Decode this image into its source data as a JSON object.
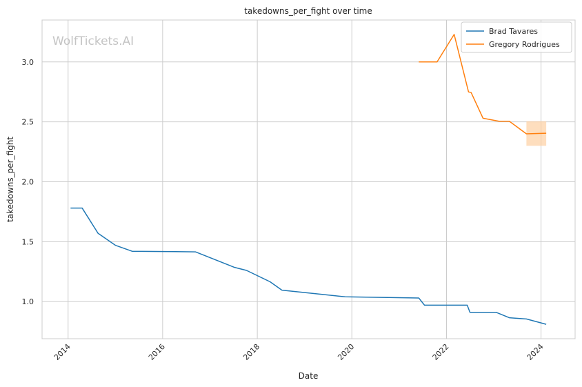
{
  "watermark": "WolfTickets.AI",
  "colors": {
    "background": "#ffffff",
    "grid": "#cccccc",
    "axes_frame": "#cccccc",
    "text": "#262626",
    "band": "#fdd0a2"
  },
  "chart_data": {
    "type": "line",
    "title": "takedowns_per_fight over time",
    "xlabel": "Date",
    "ylabel": "takedowns_per_fight",
    "x_is_date": true,
    "xlim": [
      "2013-06-14",
      "2024-09-20"
    ],
    "ylim": [
      0.69,
      3.35
    ],
    "x_ticks": [
      "2014",
      "2016",
      "2018",
      "2020",
      "2022",
      "2024"
    ],
    "y_ticks": [
      "1.0",
      "1.5",
      "2.0",
      "2.5",
      "3.0"
    ],
    "grid": true,
    "legend_position": "top-right",
    "series": [
      {
        "name": "Brad Tavares",
        "color": "#1f77b4",
        "points": [
          [
            "2014-01-20",
            1.78
          ],
          [
            "2014-04-20",
            1.78
          ],
          [
            "2014-08-20",
            1.57
          ],
          [
            "2015-01-01",
            1.47
          ],
          [
            "2015-05-10",
            1.42
          ],
          [
            "2016-09-10",
            1.415
          ],
          [
            "2017-07-10",
            1.285
          ],
          [
            "2017-10-10",
            1.26
          ],
          [
            "2018-04-10",
            1.165
          ],
          [
            "2018-07-10",
            1.095
          ],
          [
            "2019-11-10",
            1.04
          ],
          [
            "2021-06-01",
            1.03
          ],
          [
            "2021-07-15",
            0.97
          ],
          [
            "2022-06-10",
            0.97
          ],
          [
            "2022-07-01",
            0.91
          ],
          [
            "2023-01-20",
            0.91
          ],
          [
            "2023-05-01",
            0.865
          ],
          [
            "2023-09-10",
            0.855
          ],
          [
            "2024-02-10",
            0.81
          ]
        ]
      },
      {
        "name": "Gregory Rodrigues",
        "color": "#ff7f0e",
        "points": [
          [
            "2021-06-01",
            3.0
          ],
          [
            "2021-10-20",
            3.0
          ],
          [
            "2022-03-01",
            3.23
          ],
          [
            "2022-06-20",
            2.75
          ],
          [
            "2022-07-10",
            2.745
          ],
          [
            "2022-10-10",
            2.53
          ],
          [
            "2023-02-10",
            2.505
          ],
          [
            "2023-05-01",
            2.505
          ],
          [
            "2023-09-10",
            2.4
          ],
          [
            "2024-02-10",
            2.405
          ]
        ],
        "band": [
          [
            "2023-09-10",
            2.3,
            2.505
          ],
          [
            "2024-02-10",
            2.3,
            2.505
          ]
        ]
      }
    ]
  }
}
